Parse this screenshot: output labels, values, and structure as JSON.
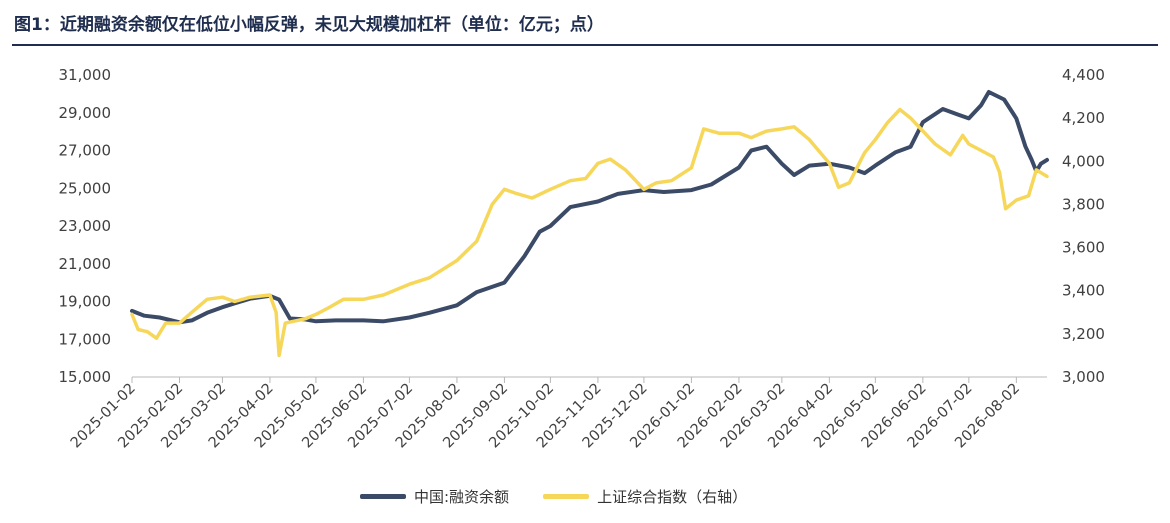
{
  "title": "图1：近期融资余额仅在低位小幅反弹，未见大规模加杠杆（单位：亿元；点）",
  "chart_data": {
    "type": "line",
    "x": [
      "2025-01-02",
      "2025-02-02",
      "2025-03-02",
      "2025-04-02",
      "2025-05-02",
      "2025-06-02",
      "2025-07-02",
      "2025-08-02",
      "2025-09-02",
      "2025-10-02",
      "2025-11-02",
      "2025-12-02",
      "2026-01-02",
      "2026-02-02",
      "2026-03-02",
      "2026-04-02",
      "2026-05-02",
      "2026-06-02",
      "2026-07-02",
      "2026-08-02"
    ],
    "x_end": "2026-08-22",
    "y_left_ticks": [
      "15,000",
      "17,000",
      "19,000",
      "21,000",
      "23,000",
      "25,000",
      "27,000",
      "29,000",
      "31,000"
    ],
    "y_right_ticks": [
      "3,000",
      "3,200",
      "3,400",
      "3,600",
      "3,800",
      "4,000",
      "4,200",
      "4,400"
    ],
    "ylim_left": [
      15000,
      31000
    ],
    "ylim_right": [
      3000,
      4400
    ],
    "series": [
      {
        "name": "中国:融资余额",
        "axis": "left",
        "color": "#3b4a66",
        "points": [
          [
            "2025-01-02",
            18500
          ],
          [
            "2025-01-10",
            18250
          ],
          [
            "2025-01-20",
            18150
          ],
          [
            "2025-02-02",
            17900
          ],
          [
            "2025-02-10",
            18000
          ],
          [
            "2025-02-20",
            18400
          ],
          [
            "2025-03-02",
            18700
          ],
          [
            "2025-03-10",
            18900
          ],
          [
            "2025-03-20",
            19150
          ],
          [
            "2025-04-02",
            19300
          ],
          [
            "2025-04-08",
            19100
          ],
          [
            "2025-04-15",
            18100
          ],
          [
            "2025-04-25",
            18050
          ],
          [
            "2025-05-02",
            17950
          ],
          [
            "2025-05-15",
            18000
          ],
          [
            "2025-06-02",
            18000
          ],
          [
            "2025-06-15",
            17950
          ],
          [
            "2025-07-02",
            18150
          ],
          [
            "2025-07-15",
            18400
          ],
          [
            "2025-08-02",
            18800
          ],
          [
            "2025-08-15",
            19500
          ],
          [
            "2025-09-02",
            20000
          ],
          [
            "2025-09-15",
            21400
          ],
          [
            "2025-09-25",
            22700
          ],
          [
            "2025-10-02",
            23000
          ],
          [
            "2025-10-15",
            24000
          ],
          [
            "2025-11-02",
            24300
          ],
          [
            "2025-11-15",
            24700
          ],
          [
            "2025-12-02",
            24900
          ],
          [
            "2025-12-15",
            24800
          ],
          [
            "2026-01-02",
            24900
          ],
          [
            "2026-01-15",
            25200
          ],
          [
            "2026-02-02",
            26100
          ],
          [
            "2026-02-10",
            27000
          ],
          [
            "2026-02-20",
            27200
          ],
          [
            "2026-03-02",
            26300
          ],
          [
            "2026-03-10",
            25700
          ],
          [
            "2026-03-20",
            26200
          ],
          [
            "2026-04-02",
            26300
          ],
          [
            "2026-04-15",
            26100
          ],
          [
            "2026-04-25",
            25800
          ],
          [
            "2026-05-02",
            26200
          ],
          [
            "2026-05-15",
            26900
          ],
          [
            "2026-05-25",
            27200
          ],
          [
            "2026-06-02",
            28500
          ],
          [
            "2026-06-15",
            29200
          ],
          [
            "2026-06-25",
            28900
          ],
          [
            "2026-07-02",
            28700
          ],
          [
            "2026-07-10",
            29400
          ],
          [
            "2026-07-15",
            30100
          ],
          [
            "2026-07-25",
            29700
          ],
          [
            "2026-08-02",
            28700
          ],
          [
            "2026-08-08",
            27200
          ],
          [
            "2026-08-12",
            26500
          ],
          [
            "2026-08-15",
            25900
          ],
          [
            "2026-08-18",
            26300
          ],
          [
            "2026-08-22",
            26500
          ]
        ]
      },
      {
        "name": "上证综合指数（右轴）",
        "axis": "right",
        "color": "#f6d75a",
        "points": [
          [
            "2025-01-02",
            3290
          ],
          [
            "2025-01-06",
            3220
          ],
          [
            "2025-01-12",
            3210
          ],
          [
            "2025-01-18",
            3180
          ],
          [
            "2025-01-24",
            3250
          ],
          [
            "2025-02-02",
            3250
          ],
          [
            "2025-02-10",
            3300
          ],
          [
            "2025-02-20",
            3360
          ],
          [
            "2025-03-02",
            3370
          ],
          [
            "2025-03-10",
            3350
          ],
          [
            "2025-03-20",
            3370
          ],
          [
            "2025-04-02",
            3380
          ],
          [
            "2025-04-06",
            3300
          ],
          [
            "2025-04-08",
            3100
          ],
          [
            "2025-04-12",
            3250
          ],
          [
            "2025-04-25",
            3270
          ],
          [
            "2025-05-02",
            3290
          ],
          [
            "2025-05-10",
            3320
          ],
          [
            "2025-05-20",
            3360
          ],
          [
            "2025-06-02",
            3360
          ],
          [
            "2025-06-15",
            3380
          ],
          [
            "2025-07-02",
            3430
          ],
          [
            "2025-07-15",
            3460
          ],
          [
            "2025-08-02",
            3540
          ],
          [
            "2025-08-15",
            3630
          ],
          [
            "2025-08-25",
            3800
          ],
          [
            "2025-09-02",
            3870
          ],
          [
            "2025-09-10",
            3850
          ],
          [
            "2025-09-20",
            3830
          ],
          [
            "2025-10-02",
            3870
          ],
          [
            "2025-10-15",
            3910
          ],
          [
            "2025-10-25",
            3920
          ],
          [
            "2025-11-02",
            3990
          ],
          [
            "2025-11-10",
            4010
          ],
          [
            "2025-11-20",
            3960
          ],
          [
            "2025-12-02",
            3870
          ],
          [
            "2025-12-10",
            3900
          ],
          [
            "2025-12-20",
            3910
          ],
          [
            "2026-01-02",
            3970
          ],
          [
            "2026-01-10",
            4150
          ],
          [
            "2026-01-20",
            4130
          ],
          [
            "2026-02-02",
            4130
          ],
          [
            "2026-02-10",
            4110
          ],
          [
            "2026-02-20",
            4140
          ],
          [
            "2026-03-02",
            4150
          ],
          [
            "2026-03-10",
            4160
          ],
          [
            "2026-03-20",
            4100
          ],
          [
            "2026-04-02",
            3990
          ],
          [
            "2026-04-08",
            3880
          ],
          [
            "2026-04-15",
            3900
          ],
          [
            "2026-04-25",
            4040
          ],
          [
            "2026-05-02",
            4100
          ],
          [
            "2026-05-10",
            4180
          ],
          [
            "2026-05-18",
            4240
          ],
          [
            "2026-05-25",
            4200
          ],
          [
            "2026-06-02",
            4140
          ],
          [
            "2026-06-10",
            4080
          ],
          [
            "2026-06-20",
            4030
          ],
          [
            "2026-06-28",
            4120
          ],
          [
            "2026-07-02",
            4080
          ],
          [
            "2026-07-10",
            4050
          ],
          [
            "2026-07-18",
            4020
          ],
          [
            "2026-07-22",
            3950
          ],
          [
            "2026-07-26",
            3780
          ],
          [
            "2026-08-02",
            3820
          ],
          [
            "2026-08-10",
            3840
          ],
          [
            "2026-08-15",
            3960
          ],
          [
            "2026-08-22",
            3930
          ]
        ]
      }
    ]
  }
}
